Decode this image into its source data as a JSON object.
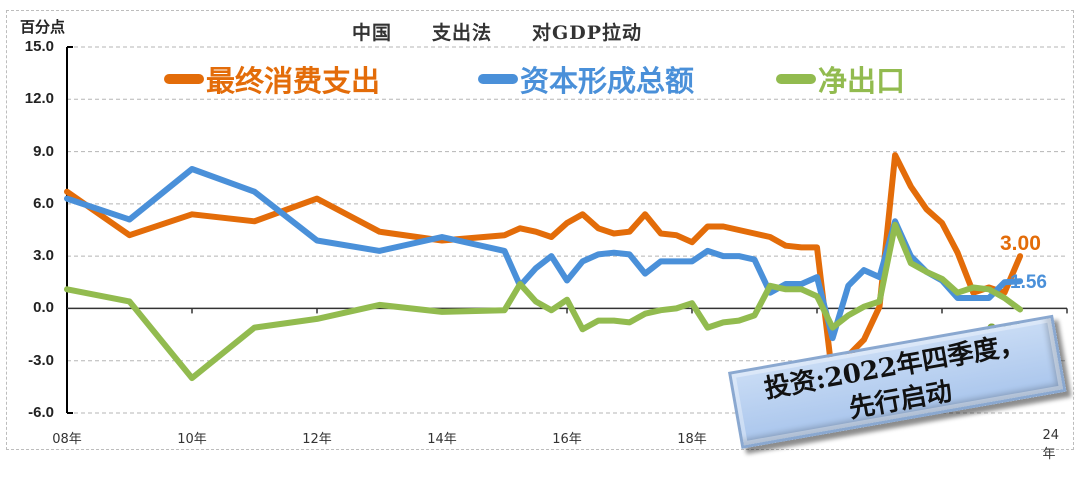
{
  "chart_data": {
    "type": "line",
    "title": "中国　　支出法　　对GDP拉动",
    "ylabel": "百分点",
    "xlabel": "",
    "ylim": [
      -6.0,
      15.0
    ],
    "yticks": [
      "15.0",
      "12.0",
      "9.0",
      "6.0",
      "3.0",
      "0.0",
      "-3.0",
      "-6.0"
    ],
    "xticks": [
      "08年",
      "10年",
      "12年",
      "14年",
      "16年",
      "18年",
      "24年"
    ],
    "grid": true,
    "legend_position": "top",
    "x": [
      2008,
      2009,
      2010,
      2011,
      2012,
      2013,
      2014,
      2015,
      2015.25,
      2015.5,
      2015.75,
      2016,
      2016.25,
      2016.5,
      2016.75,
      2017,
      2017.25,
      2017.5,
      2017.75,
      2018,
      2018.25,
      2018.5,
      2018.75,
      2019,
      2019.25,
      2019.5,
      2019.75,
      2020,
      2020.25,
      2020.5,
      2020.75,
      2021,
      2021.25,
      2021.5,
      2021.75,
      2022,
      2022.25,
      2022.5,
      2022.75,
      2023,
      2023.25
    ],
    "series": [
      {
        "name": "最终消费支出",
        "color": "#E36C09",
        "values": [
          6.7,
          4.2,
          5.4,
          5.0,
          6.3,
          4.4,
          3.9,
          4.2,
          4.6,
          4.4,
          4.1,
          4.9,
          5.4,
          4.6,
          4.3,
          4.4,
          5.4,
          4.3,
          4.2,
          3.8,
          4.7,
          4.7,
          4.5,
          4.3,
          4.1,
          3.6,
          3.5,
          3.5,
          -4.0,
          -2.7,
          -1.8,
          0.1,
          8.8,
          7.0,
          5.7,
          4.9,
          3.2,
          0.9,
          1.2,
          0.9,
          3.0
        ]
      },
      {
        "name": "资本形成总额",
        "color": "#4A90D9",
        "values": [
          6.3,
          5.1,
          8.0,
          6.7,
          3.9,
          3.3,
          4.1,
          3.3,
          1.3,
          2.3,
          3.0,
          1.6,
          2.7,
          3.1,
          3.2,
          3.1,
          2.0,
          2.7,
          2.7,
          2.7,
          3.3,
          3.0,
          3.0,
          2.8,
          0.9,
          1.4,
          1.4,
          1.8,
          -1.7,
          1.3,
          2.2,
          1.8,
          5.0,
          3.0,
          2.1,
          1.6,
          0.6,
          0.6,
          0.6,
          1.5,
          1.56
        ]
      },
      {
        "name": "净出口",
        "color": "#92BB4F",
        "values": [
          1.1,
          0.4,
          -4.0,
          -1.1,
          -0.6,
          0.2,
          -0.2,
          -0.1,
          1.4,
          0.4,
          -0.1,
          0.5,
          -1.2,
          -0.7,
          -0.7,
          -0.8,
          -0.3,
          -0.1,
          0.0,
          0.3,
          -1.1,
          -0.8,
          -0.7,
          -0.4,
          1.3,
          1.1,
          1.1,
          0.7,
          -1.1,
          -0.4,
          0.1,
          0.4,
          4.8,
          2.6,
          2.1,
          1.7,
          0.9,
          1.2,
          1.1,
          0.6,
          -0.06
        ]
      }
    ],
    "annotations": [
      {
        "text": "3.00",
        "series": "最终消费支出"
      },
      {
        "text": "1.56",
        "series": "资本形成总额"
      },
      {
        "text": "-0.06",
        "series": "净出口"
      },
      {
        "text": "投资:2022年四季度，先行启动"
      }
    ]
  },
  "labels": {
    "unit": "百分点",
    "title": "中国　　支出法　　对GDP拉动",
    "legend": [
      "最终消费支出",
      "资本形成总额",
      "净出口"
    ],
    "end_consumption": "3.00",
    "end_capital": "1.56",
    "end_netexport": "-0.06",
    "callout_line1": "投资:2022年四季度，",
    "callout_line2": "先行启动"
  },
  "colors": {
    "consumption": "#E36C09",
    "capital": "#4A90D9",
    "netexport": "#92BB4F"
  }
}
